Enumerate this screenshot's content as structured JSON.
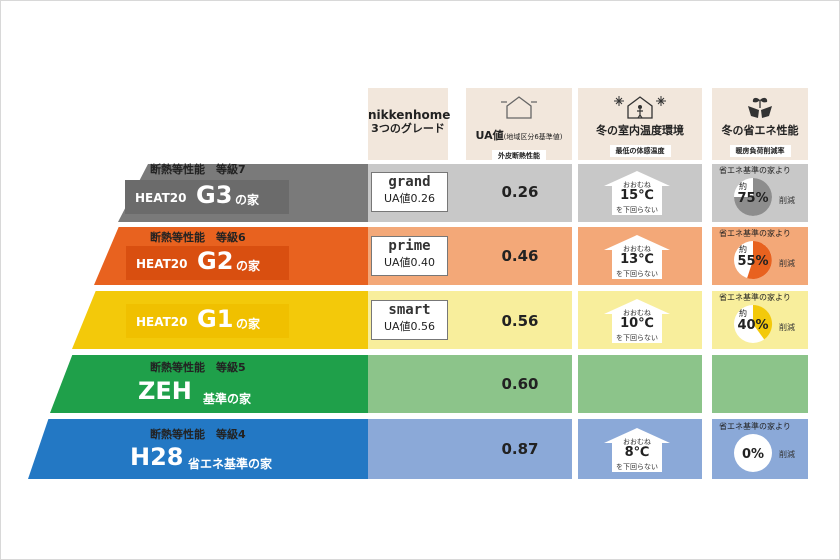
{
  "header": {
    "col_grade": {
      "line1": "nikkenhome",
      "line2": "3つのグレード"
    },
    "col_ua": {
      "title": "UA値",
      "note": "(地域区分6基準値)",
      "sub": "外皮断熱性能"
    },
    "col_temp": {
      "title": "冬の室内温度環境",
      "sub": "最低の体感温度"
    },
    "col_save": {
      "title": "冬の省エネ性能",
      "sub": "暖房負荷削減率"
    }
  },
  "rows": [
    {
      "tag": "断熱等性能　等級7",
      "prefix": "HEAT20",
      "big": "G3",
      "suffix": "の家",
      "logo": "grand",
      "ua_label": "UA値0.26",
      "ua": "0.26",
      "temp_top": "おおむね",
      "temp": "15℃",
      "temp_bottom": "を下回らない",
      "save_head": "省エネ基準の家より",
      "save_approx": "約",
      "save_pct": "75%",
      "save_pct_value": 75,
      "save_tail": "削減",
      "band_color": "#7a7a7a",
      "row_color": "#c8c8c8",
      "pie_color": "#8d8d8d"
    },
    {
      "tag": "断熱等性能　等級6",
      "prefix": "HEAT20",
      "big": "G2",
      "suffix": "の家",
      "logo": "prime",
      "ua_label": "UA値0.40",
      "ua": "0.46",
      "temp_top": "おおむね",
      "temp": "13℃",
      "temp_bottom": "を下回らない",
      "save_head": "省エネ基準の家より",
      "save_approx": "約",
      "save_pct": "55%",
      "save_pct_value": 55,
      "save_tail": "削減",
      "band_color": "#e8621f",
      "row_color": "#f3a878",
      "pie_color": "#e8621f"
    },
    {
      "tag": "",
      "prefix": "HEAT20",
      "big": "G1",
      "suffix": "の家",
      "logo": "smart",
      "ua_label": "UA値0.56",
      "ua": "0.56",
      "temp_top": "おおむね",
      "temp": "10℃",
      "temp_bottom": "を下回らない",
      "save_head": "省エネ基準の家より",
      "save_approx": "約",
      "save_pct": "40%",
      "save_pct_value": 40,
      "save_tail": "削減",
      "band_color": "#f3c90a",
      "row_color": "#f8ee9c",
      "pie_color": "#f3c90a"
    },
    {
      "tag": "断熱等性能　等級5",
      "prefix": "",
      "big": "ZEH",
      "suffix": "基準の家",
      "logo": "",
      "ua_label": "",
      "ua": "0.60",
      "temp_top": "",
      "temp": "",
      "temp_bottom": "",
      "save_head": "",
      "save_approx": "",
      "save_pct": "",
      "save_pct_value": 0,
      "save_tail": "",
      "band_color": "#1fa04a",
      "row_color": "#8cc48a",
      "pie_color": ""
    },
    {
      "tag": "断熱等性能　等級4",
      "prefix": "",
      "big": "H28",
      "suffix": "省エネ基準の家",
      "logo": "",
      "ua_label": "",
      "ua": "0.87",
      "temp_top": "おおむね",
      "temp": "8℃",
      "temp_bottom": "を下回らない",
      "save_head": "省エネ基準の家より",
      "save_approx": "",
      "save_pct": "0%",
      "save_pct_value": 0,
      "save_tail": "削減",
      "band_color": "#2378c4",
      "row_color": "#8ba9d8",
      "pie_color": ""
    }
  ]
}
